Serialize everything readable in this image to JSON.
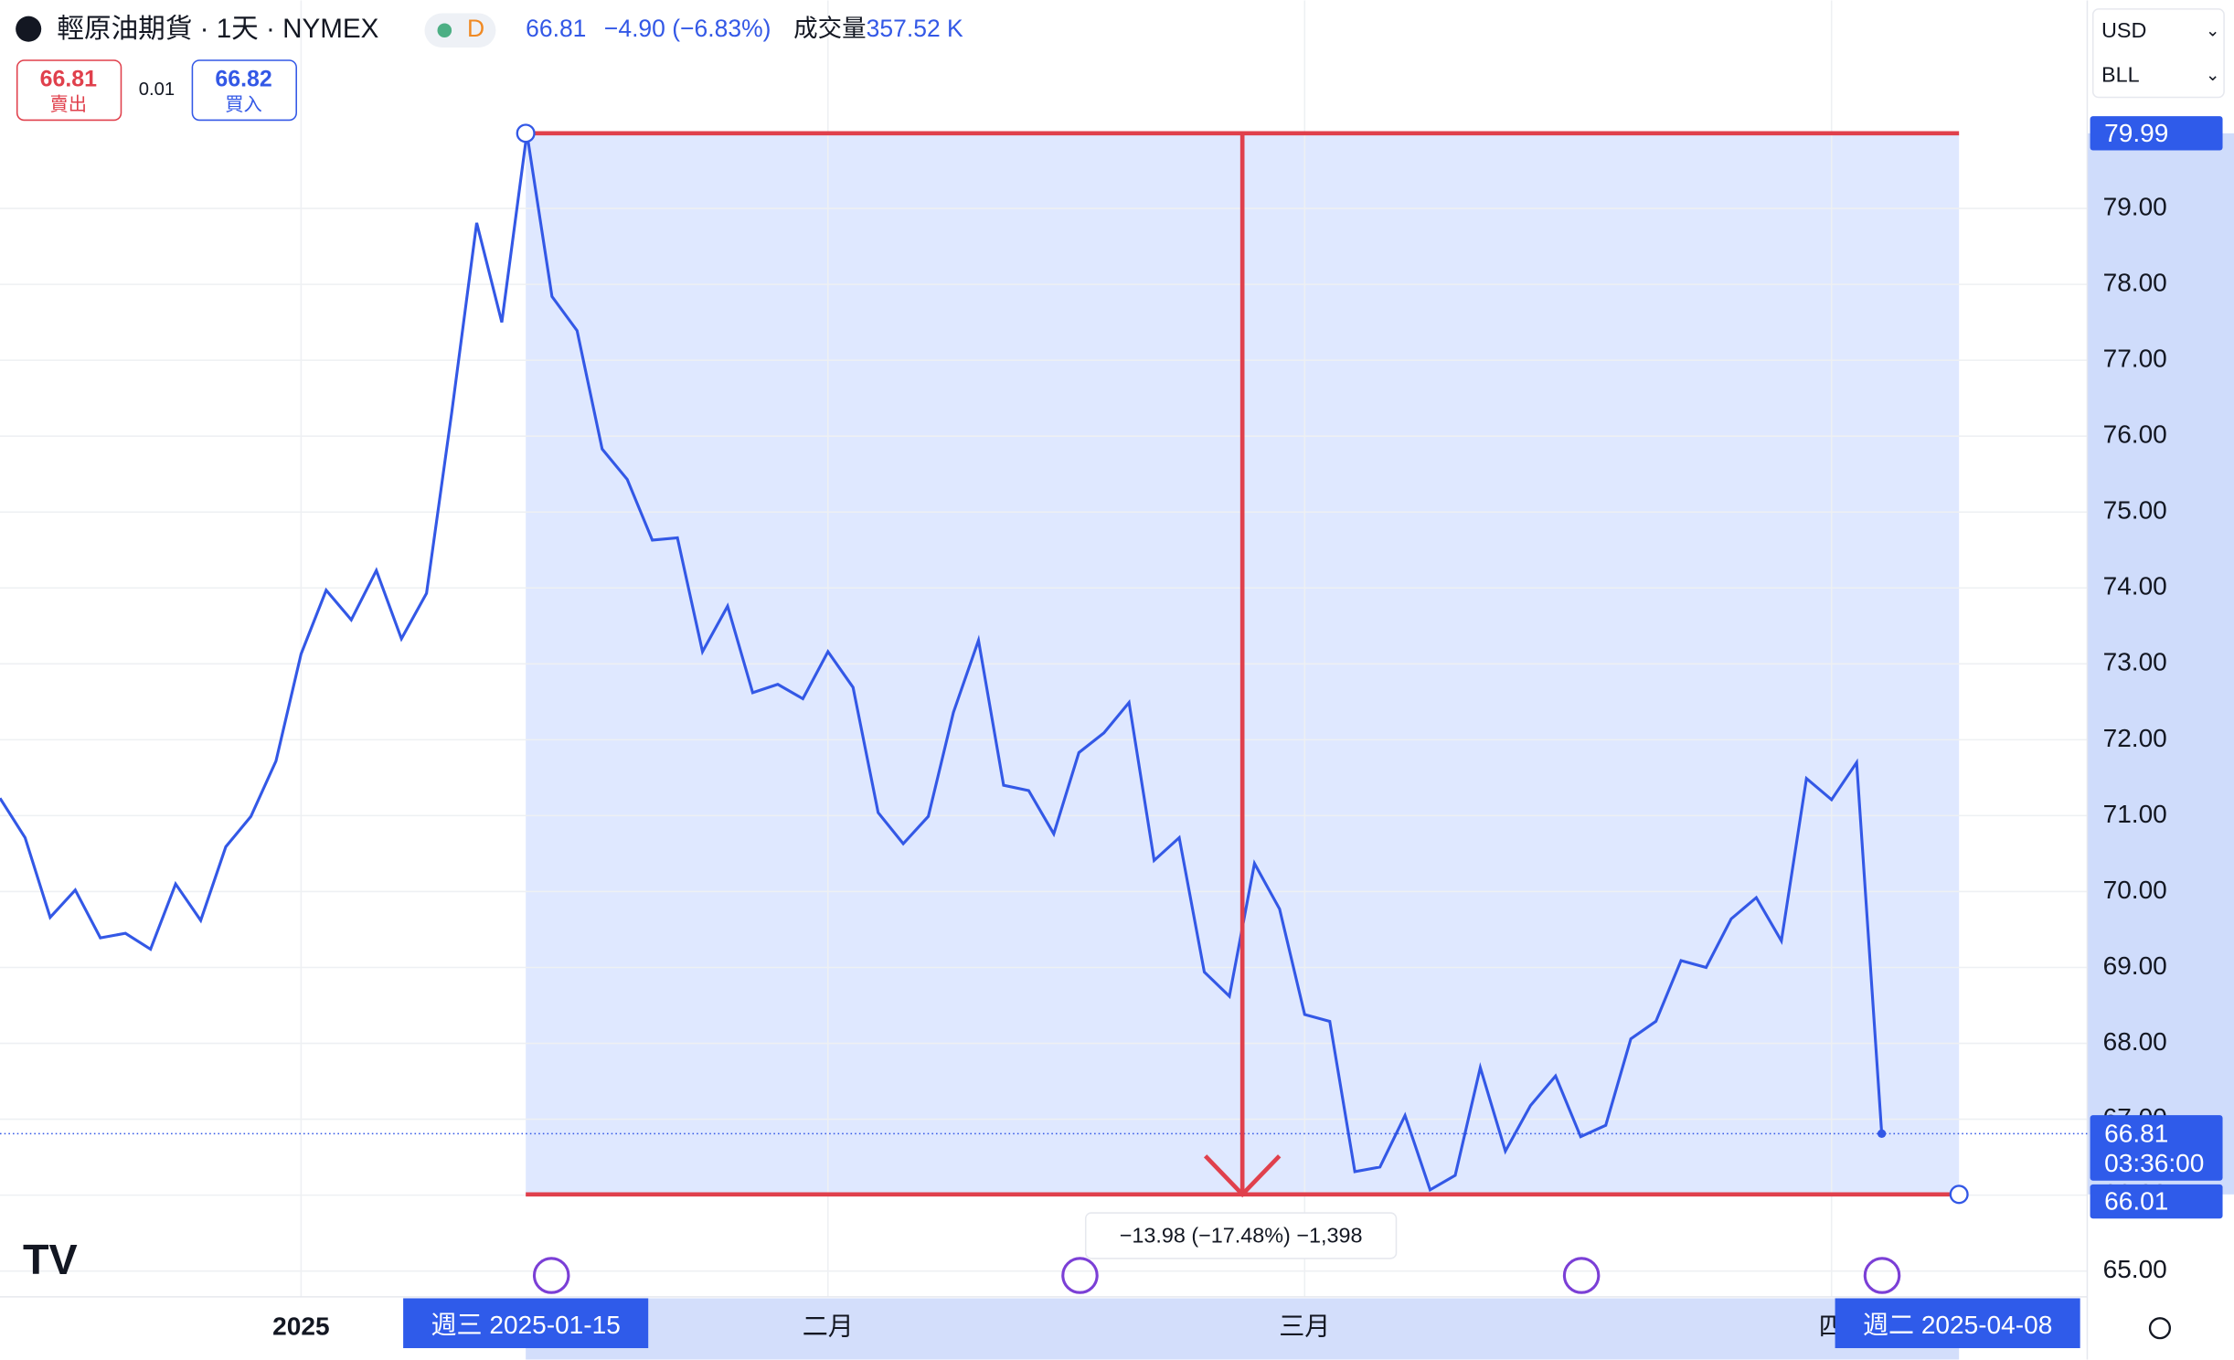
{
  "header": {
    "symbol": "輕原油期貨 · 1天 · NYMEX",
    "badge": "D",
    "price": "66.81",
    "change": "−4.90 (−6.83%)",
    "volume_label": "成交量",
    "volume": "357.52 K",
    "sell_price": "66.81",
    "sell_label": "賣出",
    "spread": "0.01",
    "buy_price": "66.82",
    "buy_label": "買入",
    "currency": "USD",
    "unit": "BLL"
  },
  "chart_data": {
    "type": "line",
    "color": "#3358e6",
    "categories": [
      null,
      null,
      null,
      null,
      null,
      null,
      null,
      null,
      null,
      null,
      null,
      null,
      "2025",
      null,
      null,
      null,
      null,
      null,
      null,
      null,
      null,
      null,
      null,
      null,
      null,
      null,
      null,
      null,
      null,
      null,
      null,
      null,
      null,
      "二月",
      null,
      null,
      null,
      null,
      null,
      null,
      null,
      null,
      null,
      null,
      null,
      null,
      null,
      null,
      null,
      null,
      null,
      null,
      "三月",
      null,
      null,
      null,
      null,
      null,
      null,
      null,
      null,
      null,
      null,
      null,
      null,
      null,
      null,
      null,
      null,
      null,
      null,
      null,
      null,
      "四",
      null,
      null
    ],
    "values": [
      71.23,
      70.71,
      69.66,
      70.02,
      69.39,
      69.45,
      69.24,
      70.1,
      69.62,
      70.59,
      70.99,
      71.72,
      73.13,
      73.97,
      73.58,
      74.23,
      73.33,
      73.93,
      76.3,
      78.81,
      77.5,
      79.99,
      77.84,
      77.39,
      75.83,
      75.43,
      74.63,
      74.66,
      73.16,
      73.76,
      72.62,
      72.73,
      72.54,
      73.16,
      72.69,
      71.04,
      70.63,
      70.99,
      72.36,
      73.31,
      71.4,
      71.33,
      70.76,
      71.83,
      72.09,
      72.49,
      70.41,
      70.71,
      68.94,
      68.62,
      70.37,
      69.77,
      68.38,
      68.29,
      66.31,
      66.37,
      67.05,
      66.07,
      66.26,
      67.68,
      66.58,
      67.18,
      67.57,
      66.77,
      66.92,
      68.06,
      68.29,
      69.09,
      69.0,
      69.64,
      69.92,
      69.35,
      71.49,
      71.21,
      71.7,
      66.81
    ],
    "ylim": [
      64.66,
      81.74
    ],
    "yticks": [
      {
        "value": 65,
        "label": "65.00"
      },
      {
        "value": 66,
        "label": "66.00"
      },
      {
        "value": 67,
        "label": "67.00"
      },
      {
        "value": 68,
        "label": "68.00"
      },
      {
        "value": 69,
        "label": "69.00"
      },
      {
        "value": 70,
        "label": "70.00"
      },
      {
        "value": 71,
        "label": "71.00"
      },
      {
        "value": 72,
        "label": "72.00"
      },
      {
        "value": 73,
        "label": "73.00"
      },
      {
        "value": 74,
        "label": "74.00"
      },
      {
        "value": 75,
        "label": "75.00"
      },
      {
        "value": 76,
        "label": "76.00"
      },
      {
        "value": 77,
        "label": "77.00"
      },
      {
        "value": 78,
        "label": "78.00"
      },
      {
        "value": 79,
        "label": "79.00"
      }
    ],
    "grid": true,
    "last_price": 66.81,
    "countdown": "03:36:00",
    "measure": {
      "start_price": 79.99,
      "end_price": 66.01,
      "label": "−13.98 (−17.48%) −1,398",
      "start_date": "週三 2025-01-15",
      "end_date": "週二 2025-04-08",
      "color": "#e0404c"
    }
  }
}
